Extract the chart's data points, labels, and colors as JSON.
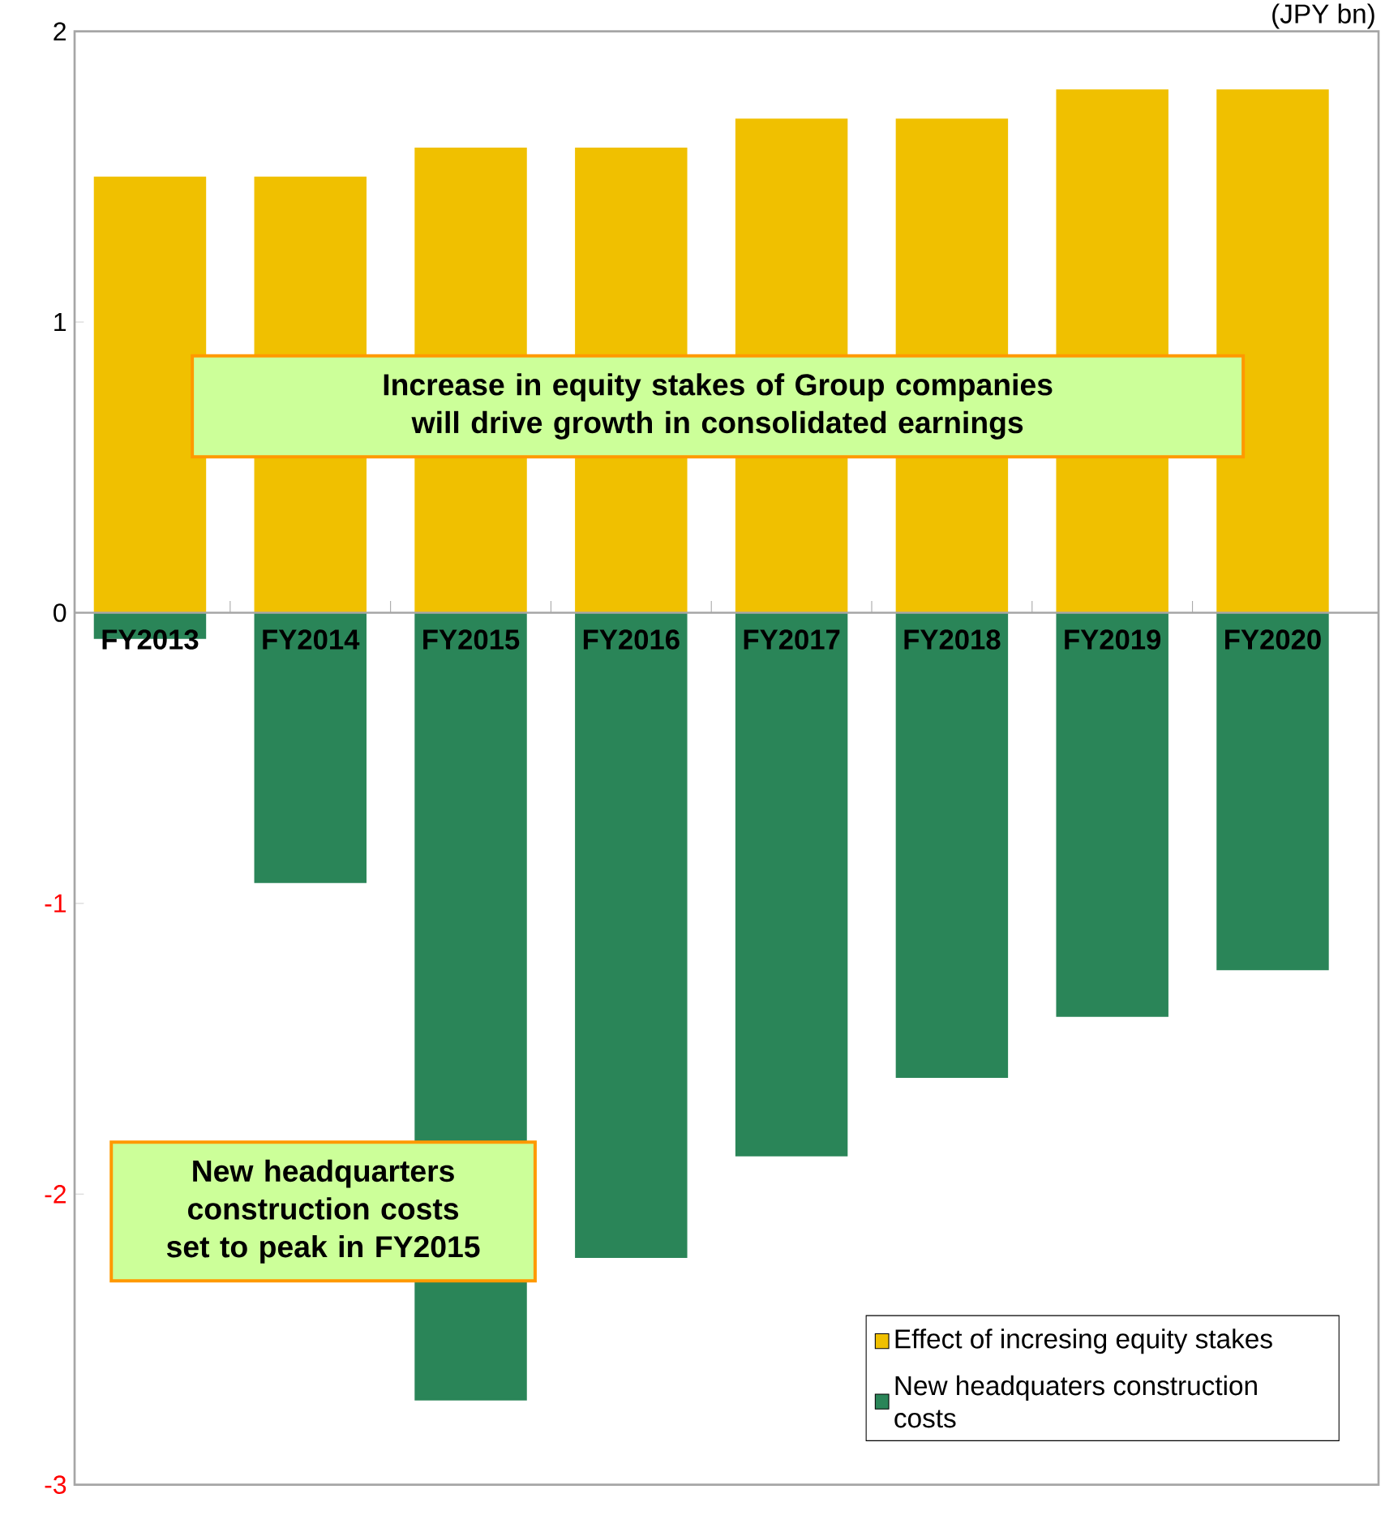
{
  "chart_data": {
    "type": "bar",
    "stacked": true,
    "categories": [
      "FY2013",
      "FY2014",
      "FY2015",
      "FY2016",
      "FY2017",
      "FY2018",
      "FY2019",
      "FY2020"
    ],
    "series": [
      {
        "name": "Effect of incresing equity stakes",
        "color": "#f0c000",
        "values": [
          1.5,
          1.5,
          1.6,
          1.6,
          1.7,
          1.7,
          1.8,
          1.8
        ]
      },
      {
        "name": "New headquaters construction costs",
        "color": "#2a8558",
        "values": [
          -0.09,
          -0.93,
          -2.71,
          -2.22,
          -1.87,
          -1.6,
          -1.39,
          -1.23
        ]
      }
    ],
    "ylim": [
      -3,
      2
    ],
    "yticks": [
      -3,
      -2,
      -1,
      0,
      1,
      2
    ],
    "ylabel": "(JPY bn)",
    "legend": "bottom right",
    "annotations": [
      "Increase in equity stakes of Group companies will drive growth in consolidated earnings",
      "New headquarters construction costs set to peak in FY2015"
    ]
  }
}
